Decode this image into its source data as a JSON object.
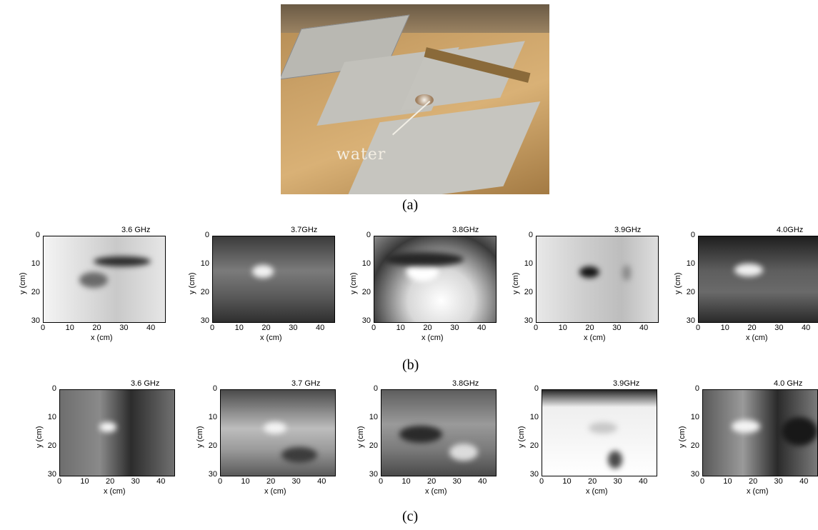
{
  "photo": {
    "label": "water"
  },
  "captions": {
    "a": "(a)",
    "b": "(b)",
    "c": "(c)"
  },
  "axes": {
    "xlabel": "x (cm)",
    "ylabel": "y (cm)",
    "xticks": [
      "0",
      "10",
      "20",
      "30",
      "40"
    ],
    "yticks": [
      "0",
      "10",
      "20",
      "30"
    ]
  },
  "row_b": [
    {
      "freq": "3.6 GHz"
    },
    {
      "freq": "3.7GHz"
    },
    {
      "freq": "3.8GHz"
    },
    {
      "freq": "3.9GHz"
    },
    {
      "freq": "4.0GHz"
    }
  ],
  "row_c": [
    {
      "freq": "3.6 GHz"
    },
    {
      "freq": "3.7 GHz"
    },
    {
      "freq": "3.8GHz"
    },
    {
      "freq": "3.9GHz"
    },
    {
      "freq": "4.0 GHz"
    }
  ]
}
